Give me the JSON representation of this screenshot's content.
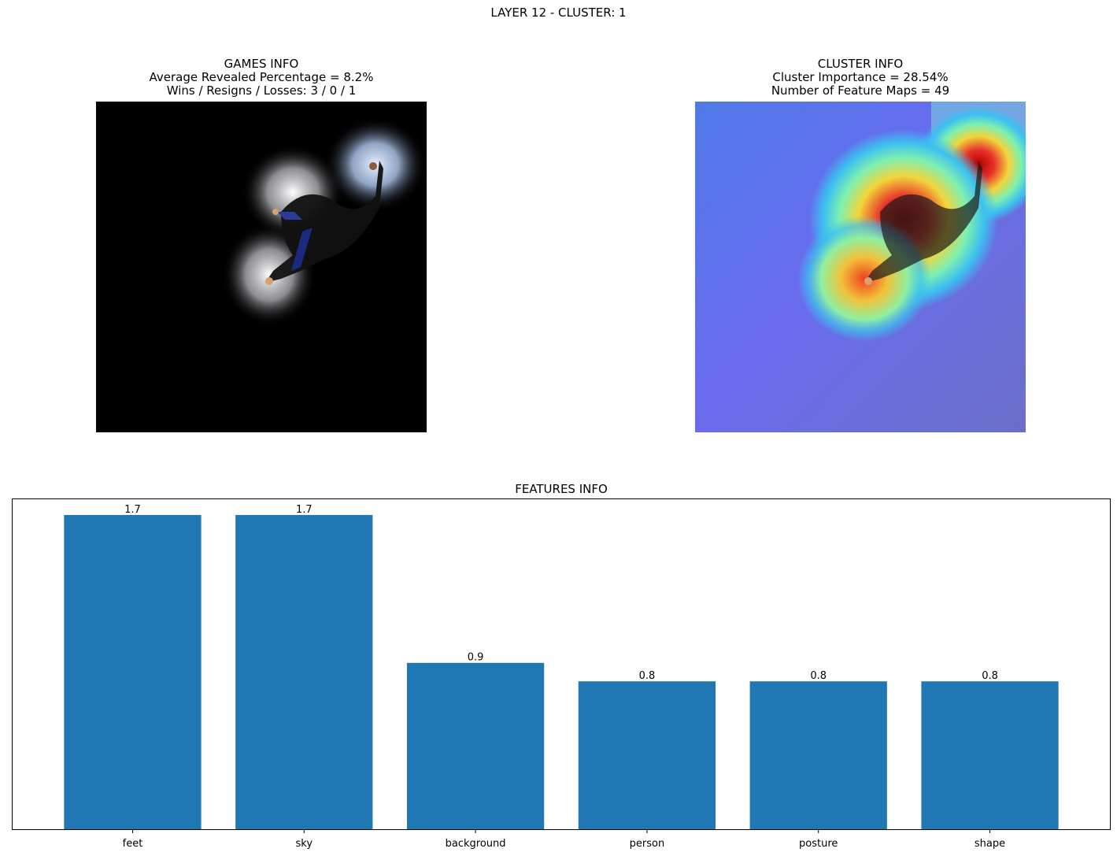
{
  "figure": {
    "suptitle": "LAYER 12 - CLUSTER: 1"
  },
  "games_info": {
    "title": "GAMES INFO",
    "line1": "Average Revealed Percentage = 8.2%",
    "line2": "Wins / Resigns / Losses: 3 / 0 / 1"
  },
  "cluster_info": {
    "title": "CLUSTER INFO",
    "line1": "Cluster Importance = 28.54%",
    "line2": "Number of Feature Maps = 49"
  },
  "chart_data": {
    "type": "bar",
    "title": "FEATURES INFO",
    "categories": [
      "feet",
      "sky",
      "background",
      "person",
      "posture",
      "shape"
    ],
    "values": [
      1.7,
      1.7,
      0.9,
      0.8,
      0.8,
      0.8
    ],
    "value_labels": [
      "1.7",
      "1.7",
      "0.9",
      "0.8",
      "0.8",
      "0.8"
    ],
    "ylim": [
      0,
      1.785
    ],
    "color": "#1f77b4",
    "grid": false
  },
  "colors": {
    "bar": "#1f77b4",
    "left_panel_background": "#000000",
    "right_panel_background": "#5a6cf0"
  }
}
